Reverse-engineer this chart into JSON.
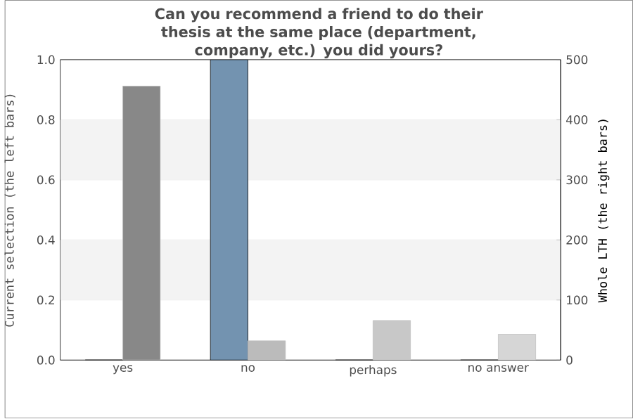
{
  "chart_data": {
    "type": "bar",
    "title": "Can you recommend a friend to do their thesis at the same place (department, company, etc.) you did yours?",
    "categories": [
      "yes",
      "no",
      "perhaps",
      "no answer"
    ],
    "ylabel": "Current selection (the left bars)",
    "y2label": "Whole LTH (the right bars)",
    "ylim": [
      0,
      1
    ],
    "yticks": [
      {
        "value": 0,
        "label": "0.0"
      },
      {
        "value": 0.2,
        "label": "0.2"
      },
      {
        "value": 0.4,
        "label": "0.4"
      },
      {
        "value": 0.6,
        "label": "0.6"
      },
      {
        "value": 0.8,
        "label": "0.8"
      },
      {
        "value": 1,
        "label": "1.0"
      }
    ],
    "y2lim": [
      0,
      500
    ],
    "y2ticks": [
      0,
      100,
      200,
      300,
      400,
      500
    ],
    "grid": "y",
    "bands": [
      {
        "axis": "y",
        "from": 0.2,
        "to": 0.4,
        "color": "#f3f3f3"
      },
      {
        "axis": "y",
        "from": 0.6,
        "to": 0.8,
        "color": "#f3f3f3"
      }
    ],
    "series": [
      {
        "color": "#7393b0",
        "values": [
          0,
          1,
          0,
          0
        ]
      },
      {
        "axis": "y2",
        "colors": [
          "#888888",
          "#bbbbbb",
          "#c8c8c8",
          "#d6d6d6"
        ],
        "values": [
          456,
          32,
          66,
          43
        ]
      }
    ]
  }
}
